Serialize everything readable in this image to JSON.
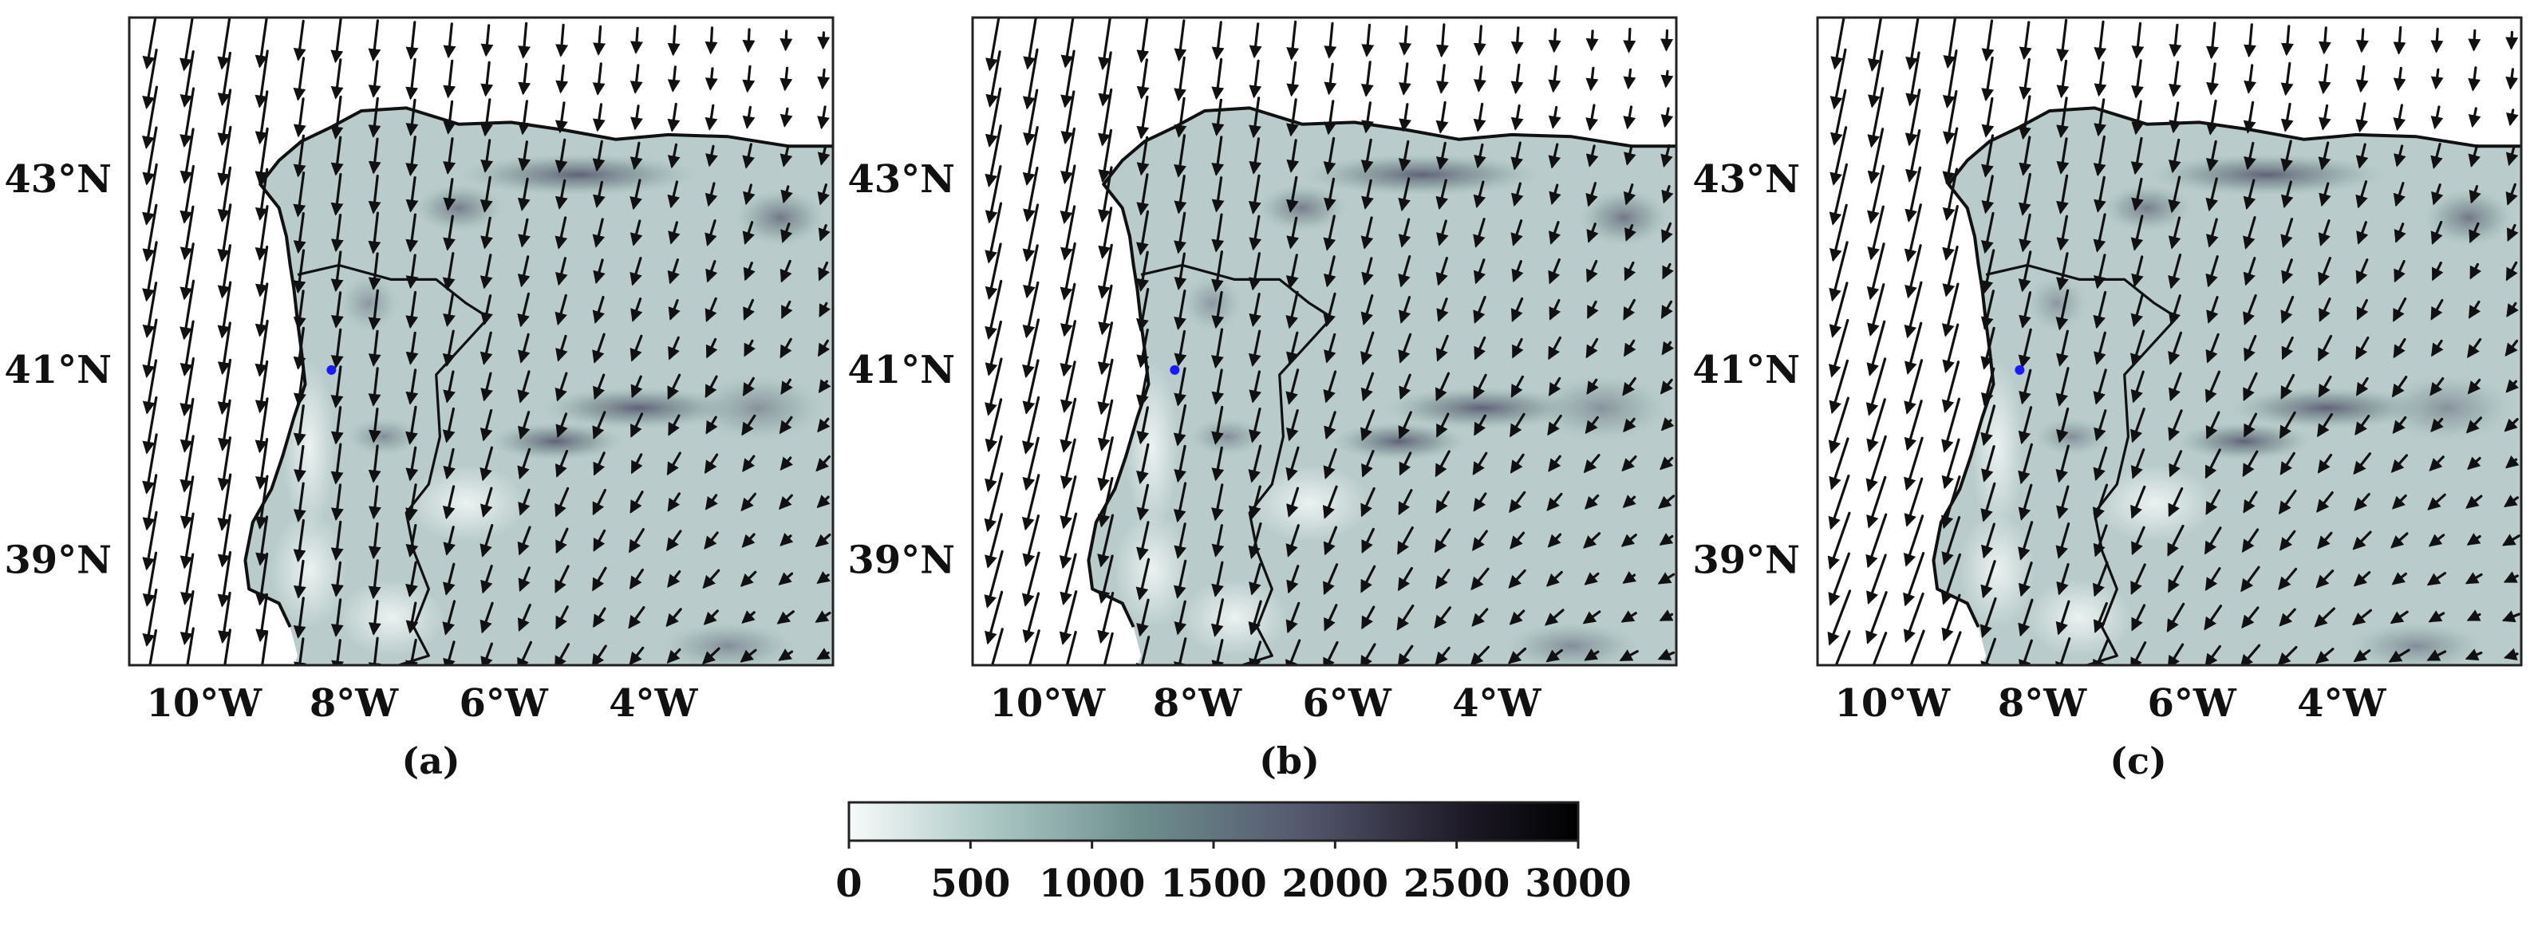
{
  "panels": [
    {
      "label": "(a)"
    },
    {
      "label": "(b)"
    },
    {
      "label": "(c)"
    }
  ],
  "axes": {
    "lat_ticks": [
      "43°N",
      "41°N",
      "39°N"
    ],
    "lon_ticks": [
      "10°W",
      "8°W",
      "6°W",
      "4°W"
    ],
    "lat_values": [
      43,
      41,
      39
    ],
    "lon_values": [
      -10,
      -8,
      -6,
      -4
    ],
    "lon_range": [
      -11,
      -1.6
    ],
    "lat_range": [
      37.9,
      44.7
    ]
  },
  "site_marker": {
    "lon": -8.3,
    "lat": 41.0,
    "color": "#1a1aff"
  },
  "colorbar": {
    "ticks": [
      "0",
      "500",
      "1000",
      "1500",
      "2000",
      "2500",
      "3000"
    ],
    "min": 0,
    "max": 3000,
    "colors": [
      "#f7fbfa",
      "#a9c6c3",
      "#6e8e8e",
      "#55586e",
      "#1c1826",
      "#000000"
    ]
  },
  "colors": {
    "land_base": "#b9cccb",
    "sea": "#ffffff",
    "arrows": "#111111"
  }
}
